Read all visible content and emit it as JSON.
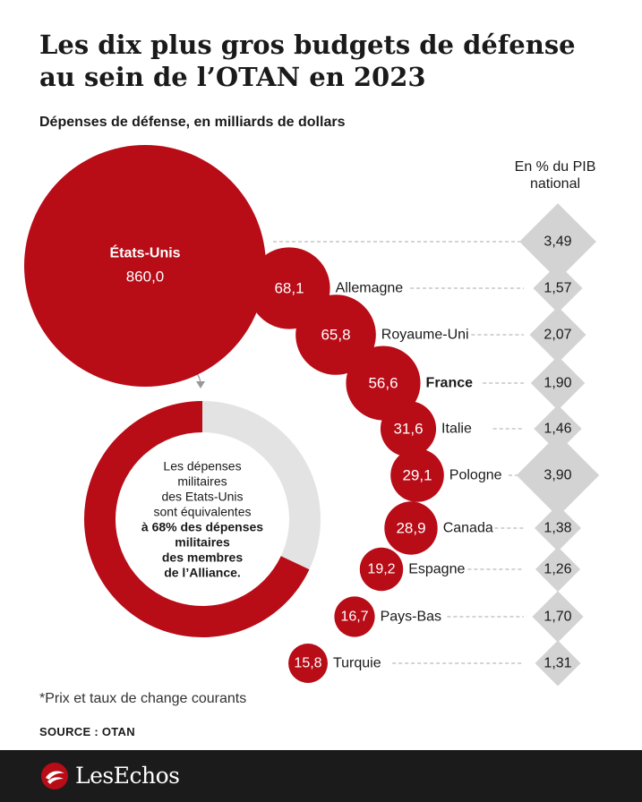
{
  "title": "Les dix plus gros budgets de défense au sein de l’OTAN en 2023",
  "subtitle": "Dépenses de défense, en milliards de dollars",
  "pct_header": "En % du PIB national",
  "colors": {
    "bubble": "#b80c17",
    "diamond": "#d3d3d3",
    "donut_rest": "#e3e3e3",
    "footer": "#1b1b1b"
  },
  "chart_data": {
    "type": "bubble",
    "title": "Les dix plus gros budgets de défense au sein de l’OTAN en 2023",
    "subtitle": "Dépenses de défense, en milliards de dollars",
    "categories": [
      "États-Unis",
      "Allemagne",
      "Royaume-Uni",
      "France",
      "Italie",
      "Pologne",
      "Canada",
      "Espagne",
      "Pays-Bas",
      "Turquie"
    ],
    "series": [
      {
        "values": [
          860.0,
          68.1,
          65.8,
          56.6,
          31.6,
          29.1,
          28.9,
          19.2,
          16.7,
          15.8
        ],
        "labels": [
          "860,0",
          "68,1",
          "65,8",
          "56,6",
          "31,6",
          "29,1",
          "28,9",
          "19,2",
          "16,7",
          "15,8"
        ]
      },
      {
        "name": "En % du PIB national",
        "values": [
          3.49,
          1.57,
          2.07,
          1.9,
          1.46,
          3.9,
          1.38,
          1.26,
          1.7,
          1.31
        ],
        "labels": [
          "3,49",
          "1,57",
          "2,07",
          "1,90",
          "1,46",
          "3,90",
          "1,38",
          "1,26",
          "1,70",
          "1,31"
        ]
      }
    ],
    "highlight": "France",
    "donut": {
      "share": 0.68,
      "text_lines": [
        "Les dépenses",
        "militaires",
        "des Etats-Unis",
        "sont équivalentes",
        "à 68% des dépenses",
        "militaires",
        "des membres",
        "de l’Alliance."
      ],
      "bold_from_line": 4
    }
  },
  "footnote": "*Prix et taux de change courants",
  "source": "SOURCE : OTAN",
  "brand": "LesEchos"
}
